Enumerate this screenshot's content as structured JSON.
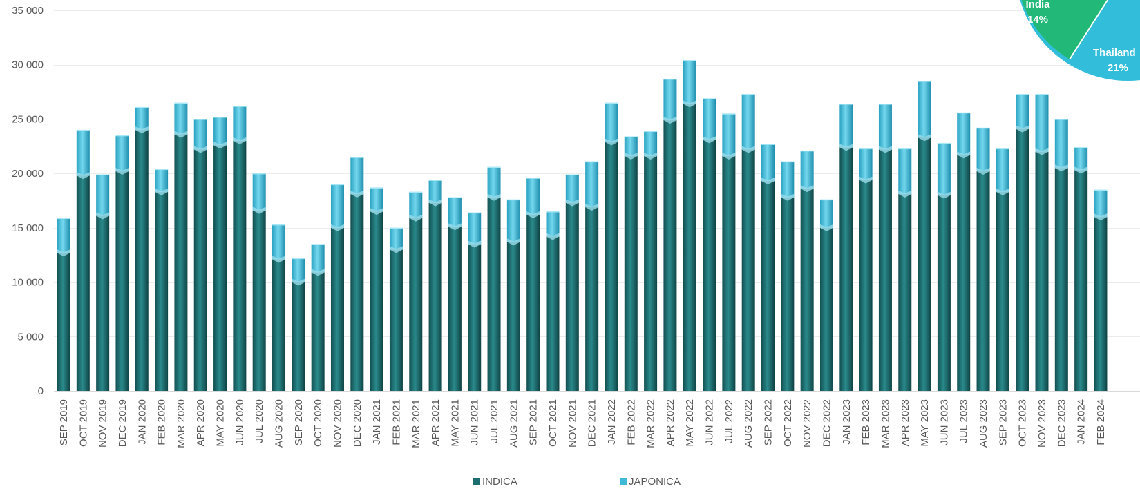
{
  "chart_data": {
    "type": "bar",
    "stacked": true,
    "categories": [
      "SEP 2019",
      "OCT 2019",
      "NOV 2019",
      "DEC 2019",
      "JAN 2020",
      "FEB 2020",
      "MAR 2020",
      "APR 2020",
      "MAY 2020",
      "JUN 2020",
      "JUL 2020",
      "AUG 2020",
      "SEP 2020",
      "OCT 2020",
      "NOV 2020",
      "DEC 2020",
      "JAN 2021",
      "FEB 2021",
      "MAR 2021",
      "APR 2021",
      "MAY 2021",
      "JUN 2021",
      "JUL 2021",
      "AUG 2021",
      "SEP 2021",
      "OCT 2021",
      "NOV 2021",
      "DEC 2021",
      "JAN 2022",
      "FEB 2022",
      "MAR 2022",
      "APR 2022",
      "MAY 2022",
      "JUN 2022",
      "JUL 2022",
      "AUG 2022",
      "SEP 2022",
      "OCT 2022",
      "NOV 2022",
      "DEC 2022",
      "JAN 2023",
      "FEB 2023",
      "MAR 2023",
      "APR 2023",
      "MAY 2023",
      "JUN 2023",
      "JUL 2023",
      "AUG 2023",
      "SEP 2023",
      "OCT 2023",
      "NOV 2023",
      "DEC 2023",
      "JAN 2024",
      "FEB 2024"
    ],
    "series": [
      {
        "name": "INDICA",
        "color": "#1d6e70",
        "values": [
          12700,
          19800,
          16100,
          20200,
          24000,
          18300,
          23600,
          22200,
          22600,
          23000,
          16600,
          12100,
          10000,
          10900,
          15000,
          18100,
          16500,
          13000,
          15900,
          17300,
          15100,
          13500,
          17800,
          13700,
          16200,
          14200,
          17300,
          16900,
          22900,
          21600,
          21600,
          24900,
          26400,
          23100,
          21600,
          22200,
          19300,
          17800,
          18600,
          15000,
          22400,
          19400,
          22200,
          18100,
          23300,
          18000,
          21700,
          20200,
          18300,
          24100,
          22000,
          20500,
          20300,
          16000
        ]
      },
      {
        "name": "JAPONICA",
        "color": "#3fb9d6",
        "values": [
          3200,
          4200,
          3800,
          3300,
          2100,
          2100,
          2900,
          2800,
          2600,
          3200,
          3400,
          3200,
          2200,
          2600,
          4000,
          3400,
          2200,
          2000,
          2400,
          2100,
          2700,
          2900,
          2800,
          3900,
          3400,
          2300,
          2600,
          4200,
          3600,
          1800,
          2300,
          3800,
          4000,
          3800,
          3900,
          5100,
          3400,
          3300,
          3500,
          2600,
          4000,
          2900,
          4200,
          4200,
          5200,
          4800,
          3900,
          4000,
          4000,
          3200,
          5300,
          4500,
          2100,
          2500
        ]
      }
    ],
    "ylim": [
      0,
      35000
    ],
    "yticks": [
      0,
      5000,
      10000,
      15000,
      20000,
      25000,
      30000,
      35000
    ],
    "ytick_labels": [
      "0",
      "5 000",
      "10 000",
      "15 000",
      "20 000",
      "25 000",
      "30 000",
      "35 000"
    ],
    "grid": true,
    "legend": {
      "position": "bottom",
      "entries": [
        "INDICA",
        "JAPONICA"
      ]
    },
    "title": "",
    "xlabel": "",
    "ylabel": ""
  },
  "inset_pie": {
    "slices": [
      {
        "label": "India",
        "value_label": "14%",
        "color": "#22b878"
      },
      {
        "label": "Thailand",
        "value_label": "21%",
        "color": "#32bedb"
      }
    ]
  }
}
